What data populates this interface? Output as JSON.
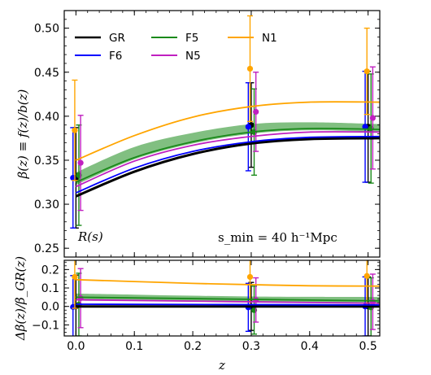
{
  "chart_data": [
    {
      "type": "line",
      "panel": "top",
      "ylabel": "β(z) ≡ f(z)/b(z)",
      "xlim": [
        -0.02,
        0.52
      ],
      "ylim": [
        0.24,
        0.52
      ],
      "yticks": [
        0.25,
        0.3,
        0.35,
        0.4,
        0.45,
        0.5
      ],
      "ytick_labels": [
        "0.25",
        "0.30",
        "0.35",
        "0.40",
        "0.45",
        "0.50"
      ],
      "annotations": {
        "left": "R(s)",
        "right": "s_min = 40 h⁻¹Mpc"
      },
      "legend": {
        "placement": "top-left",
        "entries": [
          {
            "name": "GR",
            "color": "#000000"
          },
          {
            "name": "F5",
            "color": "#1a8a1a"
          },
          {
            "name": "N1",
            "color": "#ffa500"
          },
          {
            "name": "F6",
            "color": "#0000ff"
          },
          {
            "name": "N5",
            "color": "#c020c0"
          }
        ]
      },
      "band": {
        "name": "F5",
        "color": "#1a8a1a",
        "x": [
          0.0,
          0.1,
          0.2,
          0.3,
          0.4,
          0.52
        ],
        "lower": [
          0.322,
          0.351,
          0.369,
          0.38,
          0.384,
          0.382
        ],
        "upper": [
          0.336,
          0.365,
          0.381,
          0.391,
          0.393,
          0.391
        ]
      },
      "series": [
        {
          "name": "GR",
          "color": "#000000",
          "x": [
            0.0,
            0.1,
            0.2,
            0.3,
            0.4,
            0.52
          ],
          "y": [
            0.309,
            0.337,
            0.357,
            0.369,
            0.374,
            0.375
          ],
          "points": [
            {
              "x": 0.0,
              "y": 0.33,
              "err": 0.057
            },
            {
              "x": 0.3,
              "y": 0.39,
              "err": 0.048
            },
            {
              "x": 0.5,
              "y": 0.388,
              "err": 0.063
            }
          ]
        },
        {
          "name": "F6",
          "color": "#0000ff",
          "x": [
            0.0,
            0.1,
            0.2,
            0.3,
            0.4,
            0.52
          ],
          "y": [
            0.313,
            0.341,
            0.36,
            0.371,
            0.376,
            0.377
          ],
          "points": [
            {
              "x": -0.005,
              "y": 0.33,
              "err": 0.057
            },
            {
              "x": 0.295,
              "y": 0.388,
              "err": 0.05
            },
            {
              "x": 0.495,
              "y": 0.388,
              "err": 0.063
            }
          ]
        },
        {
          "name": "F5",
          "color": "#1a8a1a",
          "x": [
            0.0,
            0.1,
            0.2,
            0.3,
            0.4,
            0.52
          ],
          "y": [
            0.325,
            0.353,
            0.371,
            0.382,
            0.386,
            0.385
          ],
          "points": [
            {
              "x": 0.005,
              "y": 0.333,
              "err": 0.057
            },
            {
              "x": 0.305,
              "y": 0.382,
              "err": 0.049
            },
            {
              "x": 0.505,
              "y": 0.386,
              "err": 0.062
            }
          ]
        },
        {
          "name": "N5",
          "color": "#c020c0",
          "x": [
            0.0,
            0.1,
            0.2,
            0.3,
            0.4,
            0.52
          ],
          "y": [
            0.32,
            0.349,
            0.367,
            0.377,
            0.382,
            0.382
          ],
          "points": [
            {
              "x": 0.008,
              "y": 0.347,
              "err": 0.054
            },
            {
              "x": 0.308,
              "y": 0.405,
              "err": 0.045
            },
            {
              "x": 0.508,
              "y": 0.398,
              "err": 0.058
            }
          ]
        },
        {
          "name": "N1",
          "color": "#ffa500",
          "x": [
            0.0,
            0.1,
            0.2,
            0.3,
            0.4,
            0.52
          ],
          "y": [
            0.35,
            0.378,
            0.399,
            0.411,
            0.416,
            0.416
          ],
          "points": [
            {
              "x": -0.002,
              "y": 0.384,
              "err": 0.057
            },
            {
              "x": 0.298,
              "y": 0.454,
              "err": 0.06
            },
            {
              "x": 0.498,
              "y": 0.451,
              "err": 0.049
            }
          ]
        }
      ]
    },
    {
      "type": "line",
      "panel": "bottom",
      "xlabel": "z",
      "ylabel": "Δβ(z)/β_GR(z)",
      "xlim": [
        -0.02,
        0.52
      ],
      "ylim": [
        -0.16,
        0.25
      ],
      "xticks": [
        0.0,
        0.1,
        0.2,
        0.3,
        0.4,
        0.5
      ],
      "xtick_labels": [
        "0.0",
        "0.1",
        "0.2",
        "0.3",
        "0.4",
        "0.5"
      ],
      "yticks": [
        -0.1,
        0.0,
        0.1,
        0.2
      ],
      "ytick_labels": [
        "−0.1",
        "0.0",
        "0.1",
        "0.2"
      ],
      "band": {
        "name": "F5",
        "color": "#1a8a1a",
        "x": [
          0.0,
          0.1,
          0.2,
          0.3,
          0.4,
          0.52
        ],
        "lower": [
          0.032,
          0.03,
          0.026,
          0.024,
          0.022,
          0.021
        ],
        "upper": [
          0.07,
          0.064,
          0.058,
          0.054,
          0.052,
          0.051
        ]
      },
      "series": [
        {
          "name": "GR",
          "color": "#000000",
          "x": [
            0.0,
            0.52
          ],
          "y": [
            0.0,
            0.0
          ],
          "points": [
            {
              "x": 0.0,
              "y": 0.0,
              "err": 0.17
            },
            {
              "x": 0.3,
              "y": 0.0,
              "err": 0.13
            },
            {
              "x": 0.5,
              "y": 0.0,
              "err": 0.16
            }
          ]
        },
        {
          "name": "F6",
          "color": "#0000ff",
          "x": [
            0.0,
            0.52
          ],
          "y": [
            0.012,
            0.008
          ],
          "points": [
            {
              "x": -0.005,
              "y": -0.003,
              "err": 0.17
            },
            {
              "x": 0.295,
              "y": -0.005,
              "err": 0.13
            },
            {
              "x": 0.495,
              "y": 0.0,
              "err": 0.16
            }
          ]
        },
        {
          "name": "F5",
          "color": "#1a8a1a",
          "x": [
            0.0,
            0.52
          ],
          "y": [
            0.05,
            0.03
          ],
          "points": [
            {
              "x": 0.005,
              "y": 0.01,
              "err": 0.17
            },
            {
              "x": 0.305,
              "y": -0.02,
              "err": 0.13
            },
            {
              "x": 0.505,
              "y": -0.005,
              "err": 0.16
            }
          ]
        },
        {
          "name": "N5",
          "color": "#c020c0",
          "x": [
            0.0,
            0.52
          ],
          "y": [
            0.036,
            0.017
          ],
          "points": [
            {
              "x": 0.008,
              "y": 0.045,
              "err": 0.16
            },
            {
              "x": 0.308,
              "y": 0.035,
              "err": 0.12
            },
            {
              "x": 0.508,
              "y": 0.025,
              "err": 0.15
            }
          ]
        },
        {
          "name": "N1",
          "color": "#ffa500",
          "x": [
            0.0,
            0.1,
            0.2,
            0.3,
            0.4,
            0.52
          ],
          "y": [
            0.145,
            0.135,
            0.125,
            0.118,
            0.112,
            0.11
          ],
          "points": [
            {
              "x": -0.002,
              "y": 0.16,
              "err": 0.17
            },
            {
              "x": 0.298,
              "y": 0.16,
              "err": 0.16
            },
            {
              "x": 0.498,
              "y": 0.165,
              "err": 0.16
            }
          ]
        }
      ]
    }
  ]
}
